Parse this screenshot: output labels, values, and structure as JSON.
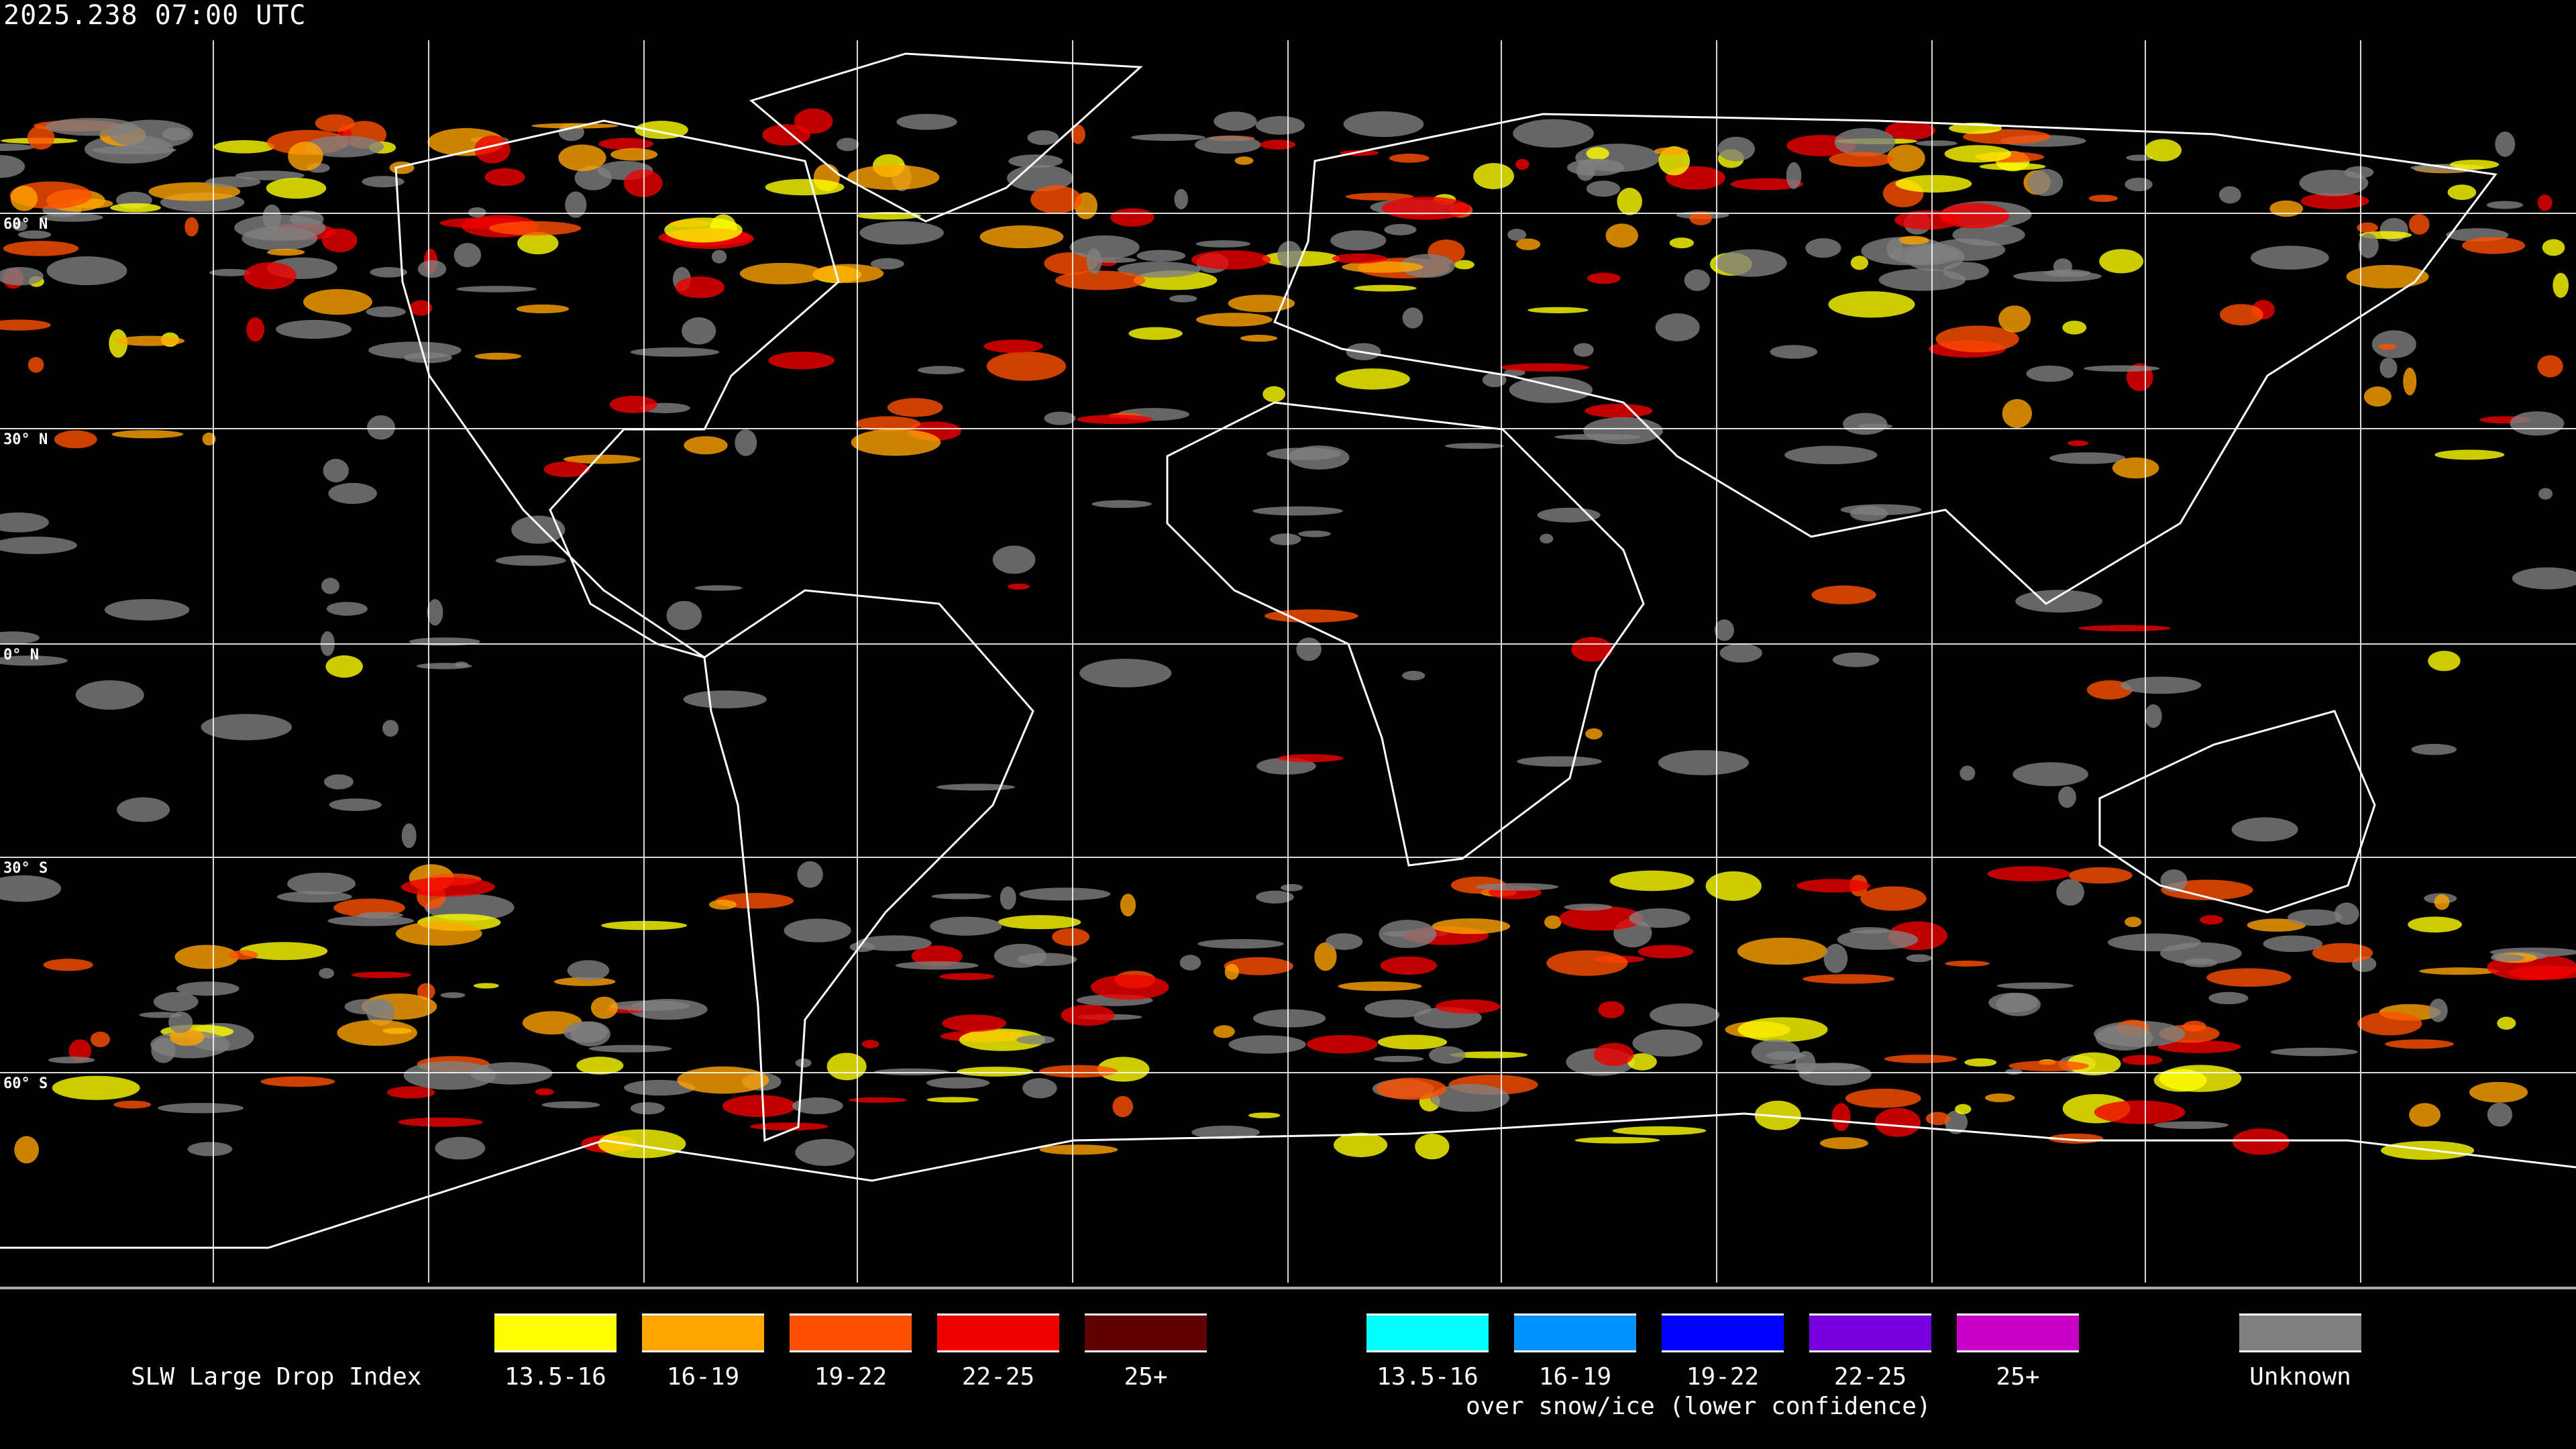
{
  "header": {
    "timestamp": "2025.238 07:00 UTC"
  },
  "map": {
    "latitude_labels": [
      "60° N",
      "30° N",
      "0° N",
      "30° S",
      "60° S"
    ],
    "background": "#000000",
    "grid_color": "#ffffff",
    "coastline_color": "#ffffff"
  },
  "legend": {
    "title": "SLW Large Drop Index",
    "primary": [
      {
        "label": "13.5-16",
        "color": "#ffff00"
      },
      {
        "label": "16-19",
        "color": "#ffa500"
      },
      {
        "label": "19-22",
        "color": "#ff5000"
      },
      {
        "label": "22-25",
        "color": "#f00000"
      },
      {
        "label": "25+",
        "color": "#600000"
      }
    ],
    "snow_ice": [
      {
        "label": "13.5-16",
        "color": "#00ffff"
      },
      {
        "label": "16-19",
        "color": "#0090ff"
      },
      {
        "label": "19-22",
        "color": "#0000ff"
      },
      {
        "label": "22-25",
        "color": "#7800e0"
      },
      {
        "label": "25+",
        "color": "#c800c8"
      }
    ],
    "snow_ice_caption": "over snow/ice (lower confidence)",
    "unknown": {
      "label": "Unknown",
      "color": "#808080"
    }
  }
}
